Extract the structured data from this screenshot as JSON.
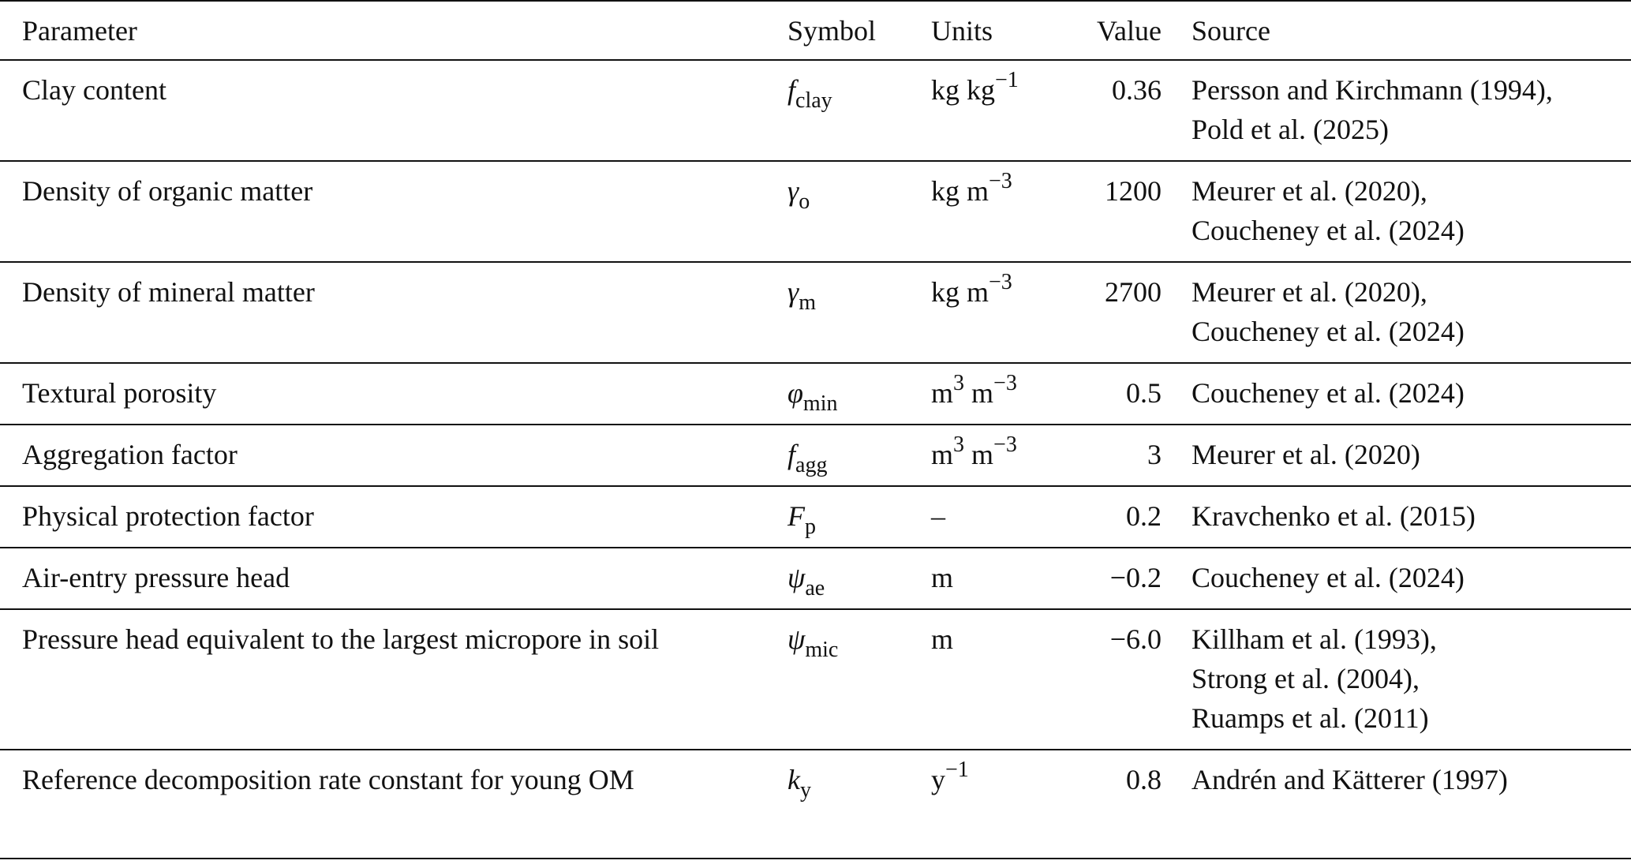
{
  "table": {
    "headers": {
      "parameter": "Parameter",
      "symbol": "Symbol",
      "units": "Units",
      "value": "Value",
      "source": "Source"
    },
    "rows": [
      {
        "parameter": "Clay content",
        "symbol": {
          "main": "f",
          "sub": "clay"
        },
        "units": {
          "base": "kg kg",
          "sup": "−1",
          "base2": ""
        },
        "value": "0.36",
        "sources": [
          "Persson and Kirchmann (1994),",
          "Pold et al. (2025)"
        ]
      },
      {
        "parameter": "Density of organic matter",
        "symbol": {
          "main": "γ",
          "sub": "o"
        },
        "units": {
          "base": "kg m",
          "sup": "−3",
          "base2": ""
        },
        "value": "1200",
        "sources": [
          "Meurer et al. (2020),",
          "Coucheney et al. (2024)"
        ]
      },
      {
        "parameter": "Density of mineral matter",
        "symbol": {
          "main": "γ",
          "sub": "m"
        },
        "units": {
          "base": "kg m",
          "sup": "−3",
          "base2": ""
        },
        "value": "2700",
        "sources": [
          "Meurer et al. (2020),",
          "Coucheney et al. (2024)"
        ]
      },
      {
        "parameter": "Textural porosity",
        "symbol": {
          "main": "φ",
          "sub": "min"
        },
        "units": {
          "base": "m",
          "sup": "3",
          "base2": " m",
          "sup2": "−3"
        },
        "value": "0.5",
        "sources": [
          "Coucheney et al. (2024)"
        ]
      },
      {
        "parameter": "Aggregation factor",
        "symbol": {
          "main": "f",
          "sub": "agg"
        },
        "units": {
          "base": "m",
          "sup": "3",
          "base2": " m",
          "sup2": "−3"
        },
        "value": "3",
        "sources": [
          "Meurer et al. (2020)"
        ]
      },
      {
        "parameter": "Physical protection factor",
        "symbol": {
          "main": "F",
          "sub": "p"
        },
        "units": {
          "base": "–",
          "sup": "",
          "base2": ""
        },
        "value": "0.2",
        "sources": [
          "Kravchenko et al. (2015)"
        ]
      },
      {
        "parameter": "Air-entry pressure head",
        "symbol": {
          "main": "ψ",
          "sub": "ae"
        },
        "units": {
          "base": "m",
          "sup": "",
          "base2": ""
        },
        "value": "−0.2",
        "sources": [
          "Coucheney et al. (2024)"
        ]
      },
      {
        "parameter": "Pressure head equivalent to the largest micropore in soil",
        "symbol": {
          "main": "ψ",
          "sub": "mic"
        },
        "units": {
          "base": "m",
          "sup": "",
          "base2": ""
        },
        "value": "−6.0",
        "sources": [
          "Killham et al. (1993),",
          "Strong et al. (2004),",
          "Ruamps et al. (2011)"
        ]
      },
      {
        "parameter": "Reference decomposition rate constant for young OM",
        "symbol": {
          "main": "k",
          "sub": "y"
        },
        "units": {
          "base": "y",
          "sup": "−1",
          "base2": ""
        },
        "value": "0.8",
        "sources": [
          "Andrén and Kätterer (1997)"
        ]
      }
    ]
  }
}
